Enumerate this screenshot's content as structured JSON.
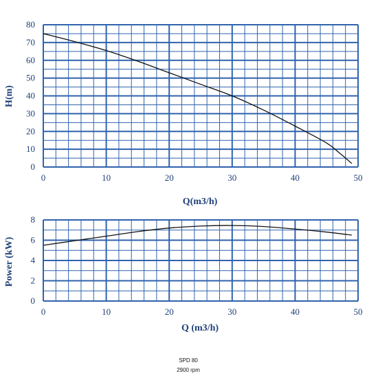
{
  "chart_data": [
    {
      "type": "line",
      "title": "",
      "xlabel": "Q(m3/h)",
      "ylabel": "H(m)",
      "xlim": [
        0,
        50
      ],
      "ylim": [
        0,
        80
      ],
      "x_ticks": [
        "0",
        "10",
        "20",
        "30",
        "40",
        "50"
      ],
      "y_ticks": [
        "0",
        "10",
        "20",
        "30",
        "40",
        "50",
        "60",
        "70",
        "80"
      ],
      "grid": true,
      "series": [
        {
          "x": [
            0,
            5,
            10,
            15,
            20,
            25,
            30,
            35,
            40,
            45,
            47,
            49
          ],
          "y": [
            75,
            70.5,
            65.5,
            59.5,
            53,
            46.5,
            40,
            32,
            23,
            13.5,
            8,
            2
          ]
        }
      ]
    },
    {
      "type": "line",
      "title": "",
      "xlabel": "Q (m3/h)",
      "ylabel": "Power (kW)",
      "xlim": [
        0,
        50
      ],
      "ylim": [
        0,
        8
      ],
      "x_ticks": [
        "0",
        "10",
        "20",
        "30",
        "40",
        "50"
      ],
      "y_ticks": [
        "0",
        "2",
        "4",
        "6",
        "8"
      ],
      "grid": true,
      "series": [
        {
          "x": [
            0,
            5,
            10,
            15,
            20,
            25,
            30,
            35,
            40,
            45,
            49
          ],
          "y": [
            5.5,
            5.95,
            6.4,
            6.85,
            7.2,
            7.4,
            7.45,
            7.35,
            7.1,
            6.8,
            6.5
          ]
        }
      ]
    }
  ],
  "caption": {
    "model": "SPD 80",
    "speed": "2900 rpm"
  },
  "colors": {
    "grid": "#2f62ad",
    "text": "#1e3f78",
    "curve": "#111111"
  }
}
